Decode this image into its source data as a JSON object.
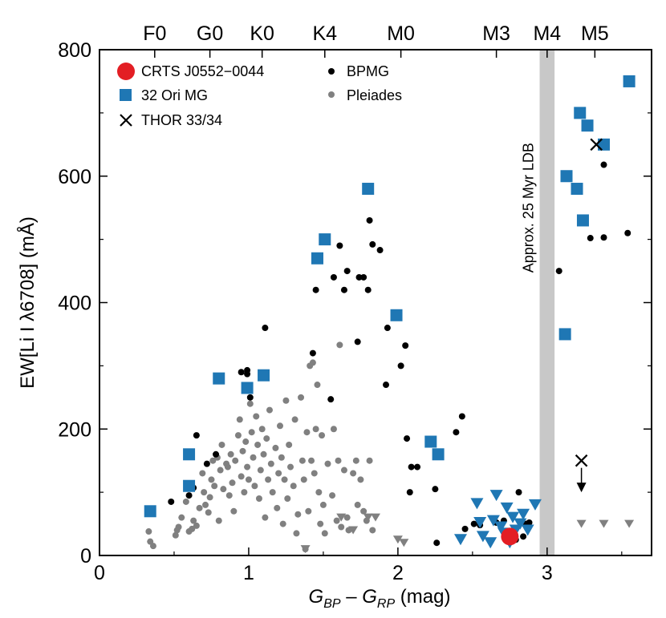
{
  "chart_data": {
    "type": "scatter",
    "xlabel_parts": {
      "g": "G",
      "bp": "BP",
      "minus": " – ",
      "rp": "RP",
      "unit": " (mag)"
    },
    "ylabel": "EW[Li I λ6708] (mÅ)",
    "xlim": [
      0,
      3.7
    ],
    "ylim": [
      0,
      800
    ],
    "x_ticks": [
      {
        "v": 0,
        "label": "0"
      },
      {
        "v": 1,
        "label": "1"
      },
      {
        "v": 2,
        "label": "2"
      },
      {
        "v": 3,
        "label": "3"
      }
    ],
    "y_ticks": [
      {
        "v": 0,
        "label": "0"
      },
      {
        "v": 200,
        "label": "200"
      },
      {
        "v": 400,
        "label": "400"
      },
      {
        "v": 600,
        "label": "600"
      },
      {
        "v": 800,
        "label": "800"
      }
    ],
    "top_axis": [
      {
        "x": 0.37,
        "label": "F0"
      },
      {
        "x": 0.74,
        "label": "G0"
      },
      {
        "x": 1.09,
        "label": "K0"
      },
      {
        "x": 1.51,
        "label": "K4"
      },
      {
        "x": 2.02,
        "label": "M0"
      },
      {
        "x": 2.66,
        "label": "M3"
      },
      {
        "x": 3.0,
        "label": "M4"
      },
      {
        "x": 3.32,
        "label": "M5"
      }
    ],
    "ldb_band": {
      "x0": 2.95,
      "x1": 3.05,
      "label": "Approx. 25 Myr LDB",
      "color": "#c8c8c8"
    },
    "legend": [
      {
        "key": "crts",
        "label": "CRTS J0552−0044"
      },
      {
        "key": "ori",
        "label": "32 Ori MG"
      },
      {
        "key": "thor",
        "label": "THOR 33/34"
      },
      {
        "key": "bpmg",
        "label": "BPMG"
      },
      {
        "key": "pleiades",
        "label": "Pleiades"
      }
    ],
    "colors": {
      "crts": "#e31e24",
      "ori": "#1f77b4",
      "bpmg": "#000000",
      "pleiades": "#808080",
      "thor": "#000000",
      "band": "#c8c8c8"
    },
    "series": [
      {
        "name": "CRTS J0552−0044",
        "marker": "big-circle",
        "points": [
          [
            2.75,
            30
          ]
        ]
      },
      {
        "name": "32 Ori MG",
        "marker": "square",
        "points": [
          [
            0.34,
            70
          ],
          [
            0.6,
            160
          ],
          [
            0.6,
            110
          ],
          [
            0.8,
            280
          ],
          [
            0.99,
            265
          ],
          [
            1.1,
            285
          ],
          [
            1.46,
            470
          ],
          [
            1.51,
            500
          ],
          [
            1.8,
            580
          ],
          [
            1.99,
            380
          ],
          [
            2.22,
            180
          ],
          [
            2.27,
            160
          ],
          [
            3.12,
            350
          ],
          [
            3.13,
            600
          ],
          [
            3.2,
            580
          ],
          [
            3.22,
            700
          ],
          [
            3.24,
            530
          ],
          [
            3.27,
            680
          ],
          [
            3.38,
            650
          ],
          [
            3.55,
            750
          ]
        ]
      },
      {
        "name": "32 Ori MG upper limits",
        "marker": "triangle-blue",
        "points": [
          [
            2.42,
            25
          ],
          [
            2.53,
            82
          ],
          [
            2.55,
            52
          ],
          [
            2.57,
            30
          ],
          [
            2.62,
            20
          ],
          [
            2.64,
            55
          ],
          [
            2.66,
            95
          ],
          [
            2.69,
            45
          ],
          [
            2.71,
            35
          ],
          [
            2.73,
            75
          ],
          [
            2.75,
            20
          ],
          [
            2.77,
            60
          ],
          [
            2.79,
            40
          ],
          [
            2.82,
            50
          ],
          [
            2.84,
            65
          ],
          [
            2.87,
            40
          ],
          [
            2.92,
            80
          ]
        ]
      },
      {
        "name": "BPMG",
        "marker": "dot-black",
        "points": [
          [
            0.48,
            85
          ],
          [
            0.6,
            95
          ],
          [
            0.63,
            107
          ],
          [
            0.72,
            145
          ],
          [
            0.78,
            160
          ],
          [
            0.65,
            190
          ],
          [
            0.95,
            290
          ],
          [
            0.99,
            293
          ],
          [
            0.99,
            287
          ],
          [
            1.01,
            250
          ],
          [
            1.11,
            360
          ],
          [
            1.43,
            320
          ],
          [
            1.45,
            420
          ],
          [
            1.55,
            247
          ],
          [
            1.57,
            440
          ],
          [
            1.61,
            490
          ],
          [
            1.64,
            420
          ],
          [
            1.66,
            450
          ],
          [
            1.73,
            338
          ],
          [
            1.74,
            440
          ],
          [
            1.77,
            440
          ],
          [
            1.8,
            420
          ],
          [
            1.81,
            530
          ],
          [
            1.83,
            492
          ],
          [
            1.88,
            483
          ],
          [
            1.92,
            270
          ],
          [
            1.93,
            360
          ],
          [
            2.02,
            300
          ],
          [
            2.05,
            332
          ],
          [
            2.06,
            185
          ],
          [
            2.08,
            100
          ],
          [
            2.09,
            140
          ],
          [
            2.13,
            140
          ],
          [
            2.25,
            105
          ],
          [
            2.26,
            20
          ],
          [
            2.39,
            195
          ],
          [
            2.43,
            220
          ],
          [
            2.45,
            42
          ],
          [
            2.51,
            50
          ],
          [
            2.55,
            48
          ],
          [
            2.66,
            52
          ],
          [
            2.71,
            55
          ],
          [
            2.79,
            25
          ],
          [
            2.81,
            100
          ],
          [
            2.84,
            30
          ],
          [
            2.86,
            50
          ],
          [
            2.88,
            52
          ],
          [
            3.08,
            450
          ],
          [
            3.29,
            502
          ],
          [
            3.38,
            503
          ],
          [
            3.38,
            618
          ],
          [
            3.54,
            510
          ]
        ]
      },
      {
        "name": "Pleiades",
        "marker": "dot-gray",
        "points": [
          [
            0.33,
            38
          ],
          [
            0.34,
            22
          ],
          [
            0.36,
            15
          ],
          [
            0.51,
            32
          ],
          [
            0.52,
            40
          ],
          [
            0.53,
            45
          ],
          [
            0.55,
            60
          ],
          [
            0.58,
            85
          ],
          [
            0.6,
            38
          ],
          [
            0.62,
            42
          ],
          [
            0.63,
            55
          ],
          [
            0.65,
            47
          ],
          [
            0.67,
            75
          ],
          [
            0.69,
            130
          ],
          [
            0.7,
            100
          ],
          [
            0.71,
            80
          ],
          [
            0.73,
            68
          ],
          [
            0.74,
            92
          ],
          [
            0.75,
            120
          ],
          [
            0.76,
            150
          ],
          [
            0.77,
            110
          ],
          [
            0.79,
            155
          ],
          [
            0.8,
            55
          ],
          [
            0.81,
            135
          ],
          [
            0.82,
            175
          ],
          [
            0.83,
            105
          ],
          [
            0.85,
            145
          ],
          [
            0.86,
            140
          ],
          [
            0.87,
            95
          ],
          [
            0.88,
            160
          ],
          [
            0.89,
            115
          ],
          [
            0.9,
            70
          ],
          [
            0.91,
            150
          ],
          [
            0.93,
            190
          ],
          [
            0.94,
            215
          ],
          [
            0.95,
            125
          ],
          [
            0.96,
            165
          ],
          [
            0.97,
            100
          ],
          [
            0.98,
            180
          ],
          [
            0.99,
            140
          ],
          [
            1.0,
            120
          ],
          [
            1.01,
            240
          ],
          [
            1.02,
            195
          ],
          [
            1.03,
            155
          ],
          [
            1.04,
            110
          ],
          [
            1.05,
            220
          ],
          [
            1.06,
            175
          ],
          [
            1.07,
            90
          ],
          [
            1.08,
            135
          ],
          [
            1.09,
            200
          ],
          [
            1.1,
            160
          ],
          [
            1.11,
            60
          ],
          [
            1.12,
            185
          ],
          [
            1.13,
            120
          ],
          [
            1.14,
            230
          ],
          [
            1.15,
            145
          ],
          [
            1.16,
            100
          ],
          [
            1.18,
            170
          ],
          [
            1.19,
            75
          ],
          [
            1.2,
            130
          ],
          [
            1.21,
            205
          ],
          [
            1.22,
            155
          ],
          [
            1.23,
            50
          ],
          [
            1.24,
            120
          ],
          [
            1.25,
            245
          ],
          [
            1.26,
            90
          ],
          [
            1.27,
            175
          ],
          [
            1.28,
            140
          ],
          [
            1.3,
            110
          ],
          [
            1.31,
            215
          ],
          [
            1.32,
            35
          ],
          [
            1.33,
            65
          ],
          [
            1.35,
            250
          ],
          [
            1.36,
            150
          ],
          [
            1.37,
            120
          ],
          [
            1.38,
            10
          ],
          [
            1.39,
            195
          ],
          [
            1.4,
            70
          ],
          [
            1.41,
            300
          ],
          [
            1.42,
            150
          ],
          [
            1.43,
            305
          ],
          [
            1.44,
            130
          ],
          [
            1.45,
            200
          ],
          [
            1.46,
            270
          ],
          [
            1.47,
            100
          ],
          [
            1.48,
            50
          ],
          [
            1.49,
            190
          ],
          [
            1.5,
            80
          ],
          [
            1.51,
            35
          ],
          [
            1.53,
            145
          ],
          [
            1.56,
            95
          ],
          [
            1.57,
            200
          ],
          [
            1.59,
            55
          ],
          [
            1.6,
            150
          ],
          [
            1.61,
            333
          ],
          [
            1.62,
            45
          ],
          [
            1.64,
            135
          ],
          [
            1.66,
            60
          ],
          [
            1.67,
            40
          ],
          [
            1.7,
            130
          ],
          [
            1.72,
            150
          ],
          [
            1.73,
            80
          ],
          [
            1.75,
            120
          ],
          [
            1.77,
            70
          ],
          [
            1.79,
            55
          ],
          [
            1.81,
            150
          ],
          [
            1.83,
            40
          ]
        ]
      },
      {
        "name": "Pleiades upper limits",
        "marker": "triangle-gray",
        "points": [
          [
            1.38,
            10
          ],
          [
            1.62,
            60
          ],
          [
            1.7,
            40
          ],
          [
            1.8,
            60
          ],
          [
            1.85,
            60
          ],
          [
            2.0,
            25
          ],
          [
            2.04,
            20
          ],
          [
            3.23,
            50
          ],
          [
            3.38,
            50
          ],
          [
            3.55,
            50
          ]
        ]
      },
      {
        "name": "THOR 33/34",
        "marker": "cross",
        "points": [
          [
            3.33,
            650
          ],
          [
            3.23,
            150
          ]
        ]
      },
      {
        "name": "THOR 33/34 upper limit arrow",
        "marker": "arrow-down",
        "points": [
          [
            3.23,
            150
          ]
        ],
        "to": 105
      }
    ]
  }
}
